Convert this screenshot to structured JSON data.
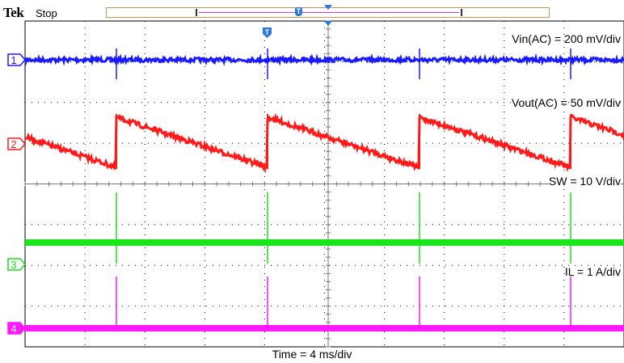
{
  "header": {
    "brand": "Tek",
    "status": "Stop"
  },
  "trigger": {
    "marker": "T"
  },
  "channels": [
    {
      "number": "1",
      "label": "Vin(AC) = 200 mV/div",
      "color": "#1a1aff"
    },
    {
      "number": "2",
      "label": "Vout(AC) = 50 mV/div",
      "color": "#ff1a1a"
    },
    {
      "number": "3",
      "label": "SW = 10 V/div",
      "color": "#19e619"
    },
    {
      "number": "4",
      "label": "IL = 1 A/div",
      "color": "#ff19ff"
    }
  ],
  "timebase": {
    "label": "Time = 4 ms/div"
  },
  "grid": {
    "color": "#000000",
    "style": "dotted"
  }
}
